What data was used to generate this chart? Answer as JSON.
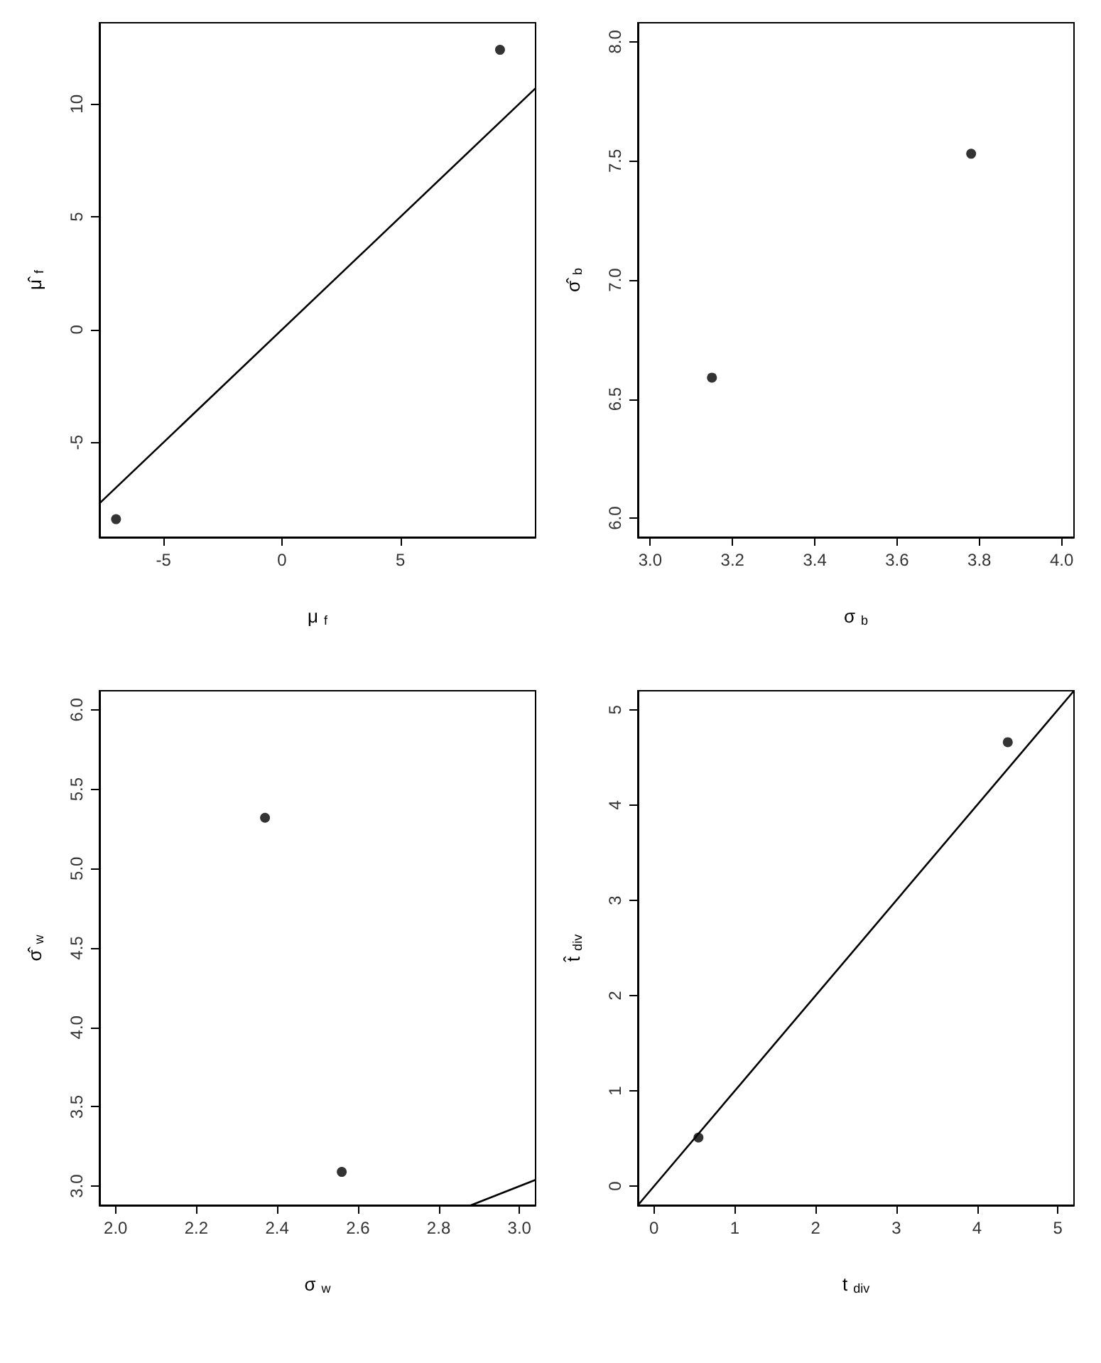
{
  "chart_data": [
    {
      "type": "scatter",
      "xlabel": "μ$_{f}$",
      "ylabel": "μ̂$_{f}$",
      "xlim": [
        -7.7,
        10.7
      ],
      "xticks": [
        -5,
        0,
        5
      ],
      "ylim": [
        -9.2,
        13.6
      ],
      "yticks": [
        -5,
        0,
        5,
        10
      ],
      "marker": "circle",
      "series": [
        {
          "type": "scatter",
          "color": "#000000",
          "x": [
            -7.0,
            9.2
          ],
          "values": [
            -8.4,
            12.4
          ]
        },
        {
          "type": "line",
          "color": "#000000",
          "marker": "none",
          "x": [
            -7.7,
            10.7
          ],
          "values": [
            -7.7,
            10.7
          ]
        }
      ]
    },
    {
      "type": "scatter",
      "xlabel": "σ$_{b}$",
      "ylabel": "σ̂$_{b}$",
      "xlim": [
        2.97,
        4.03
      ],
      "xticks": [
        {
          "value": 3,
          "label": "3.0"
        },
        3.2,
        3.4,
        3.6,
        3.8,
        {
          "value": 4,
          "label": "4.0"
        }
      ],
      "ylim": [
        5.92,
        8.08
      ],
      "yticks": [
        {
          "value": 6,
          "label": "6.0"
        },
        6.5,
        {
          "value": 7,
          "label": "7.0"
        },
        7.5,
        {
          "value": 8,
          "label": "8.0"
        }
      ],
      "marker": "circle",
      "series": [
        {
          "type": "scatter",
          "color": "#000000",
          "x": [
            3.15,
            3.78
          ],
          "values": [
            6.59,
            7.53
          ]
        }
      ]
    },
    {
      "type": "scatter",
      "xlabel": "σ$_{w}$",
      "ylabel": "σ̂$_{w}$",
      "xlim": [
        1.96,
        3.04
      ],
      "xticks": [
        {
          "value": 2,
          "label": "2.0"
        },
        2.2,
        2.4,
        2.6,
        2.8,
        {
          "value": 3,
          "label": "3.0"
        }
      ],
      "ylim": [
        2.88,
        6.12
      ],
      "yticks": [
        {
          "value": 3,
          "label": "3.0"
        },
        3.5,
        {
          "value": 4,
          "label": "4.0"
        },
        4.5,
        {
          "value": 5,
          "label": "5.0"
        },
        5.5,
        {
          "value": 6,
          "label": "6.0"
        }
      ],
      "marker": "circle",
      "series": [
        {
          "type": "scatter",
          "color": "#000000",
          "x": [
            2.37,
            2.56
          ],
          "values": [
            5.32,
            3.09
          ]
        },
        {
          "type": "line",
          "color": "#000000",
          "marker": "none",
          "x": [
            2.88,
            3.04
          ],
          "values": [
            2.88,
            3.04
          ]
        }
      ]
    },
    {
      "type": "scatter",
      "xlabel": "t$_{div}$",
      "ylabel": "t̂$_{div}$",
      "xlim": [
        -0.2,
        5.2
      ],
      "xticks": [
        0,
        1,
        2,
        3,
        4,
        5
      ],
      "ylim": [
        -0.2,
        5.2
      ],
      "yticks": [
        0,
        1,
        2,
        3,
        4,
        5
      ],
      "marker": "circle",
      "series": [
        {
          "type": "scatter",
          "color": "#000000",
          "x": [
            0.55,
            4.38
          ],
          "values": [
            0.51,
            4.66
          ]
        },
        {
          "type": "line",
          "color": "#000000",
          "marker": "none",
          "x": [
            -0.2,
            5.2
          ],
          "values": [
            -0.2,
            5.2
          ]
        }
      ]
    }
  ]
}
